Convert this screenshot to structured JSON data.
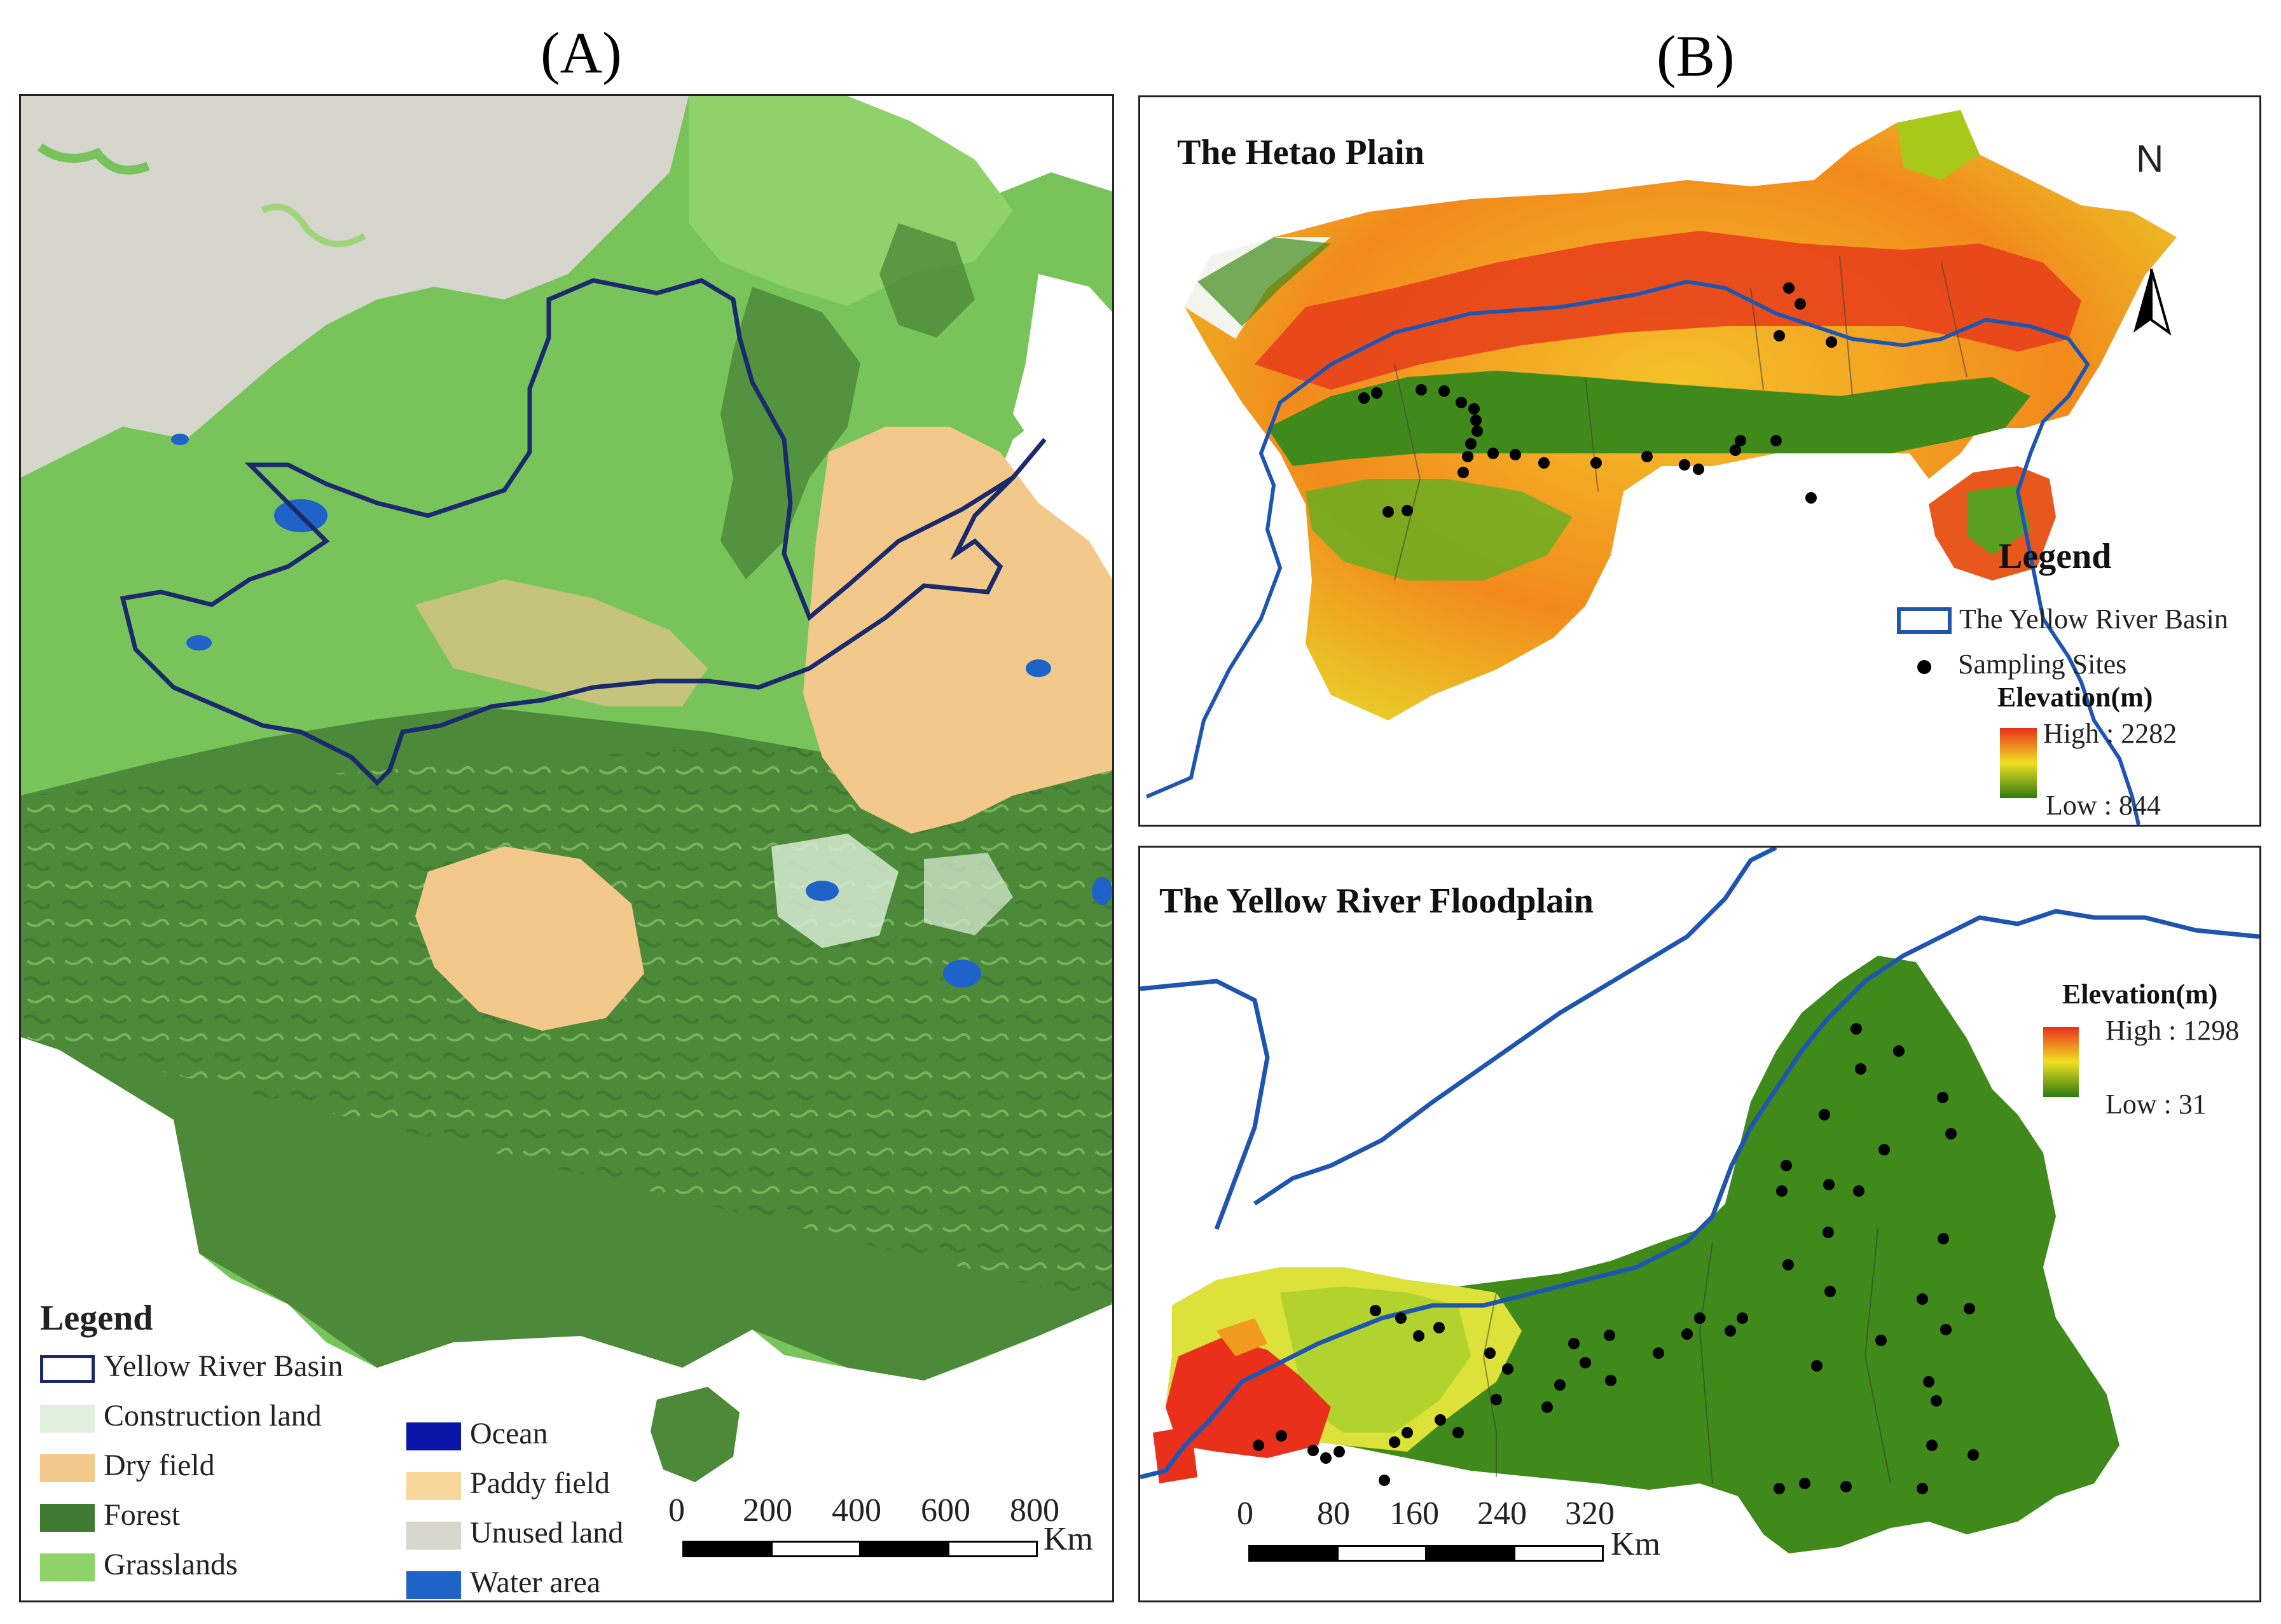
{
  "panels": {
    "a_label": "(A)",
    "b_label": "(B)"
  },
  "panel_a": {
    "legend_title": "Legend",
    "legend_items": [
      {
        "label": "Yellow River Basin",
        "color": "#1a2a6c",
        "kind": "outline"
      },
      {
        "label": "Construction land",
        "color": "#dff0dc",
        "kind": "fill"
      },
      {
        "label": "Dry field",
        "color": "#f2c98a",
        "kind": "fill"
      },
      {
        "label": "Forest",
        "color": "#3f7a32",
        "kind": "fill"
      },
      {
        "label": "Grasslands",
        "color": "#8fd26a",
        "kind": "fill"
      },
      {
        "label": "Ocean",
        "color": "#0a16a8",
        "kind": "fill"
      },
      {
        "label": "Paddy field",
        "color": "#f8d79c",
        "kind": "fill"
      },
      {
        "label": "Unused land",
        "color": "#d6d6cc",
        "kind": "fill"
      },
      {
        "label": "Water area",
        "color": "#1f63c8",
        "kind": "fill"
      }
    ],
    "scale_ticks": [
      "0",
      "200",
      "400",
      "600",
      "800"
    ],
    "scale_unit": "Km"
  },
  "panel_b_top": {
    "title": "The Hetao Plain",
    "north": "N",
    "legend_title": "Legend",
    "basin_label": "The Yellow River Basin",
    "sites_label": "Sampling Sites",
    "elev_title": "Elevation(m)",
    "elev_high": "High : 2282",
    "elev_low": "Low : 844"
  },
  "panel_b_bottom": {
    "title": "The Yellow River Floodplain",
    "elev_title": "Elevation(m)",
    "elev_high": "High : 1298",
    "elev_low": "Low : 31",
    "scale_ticks": [
      "0",
      "80",
      "160",
      "240",
      "320"
    ],
    "scale_unit": "Km"
  },
  "colors": {
    "river": "#1e55b0",
    "basin_outline": "#1a2a6c",
    "elev_high": "#e8301a",
    "elev_mid": "#f0e020",
    "elev_low": "#2f7a12"
  }
}
